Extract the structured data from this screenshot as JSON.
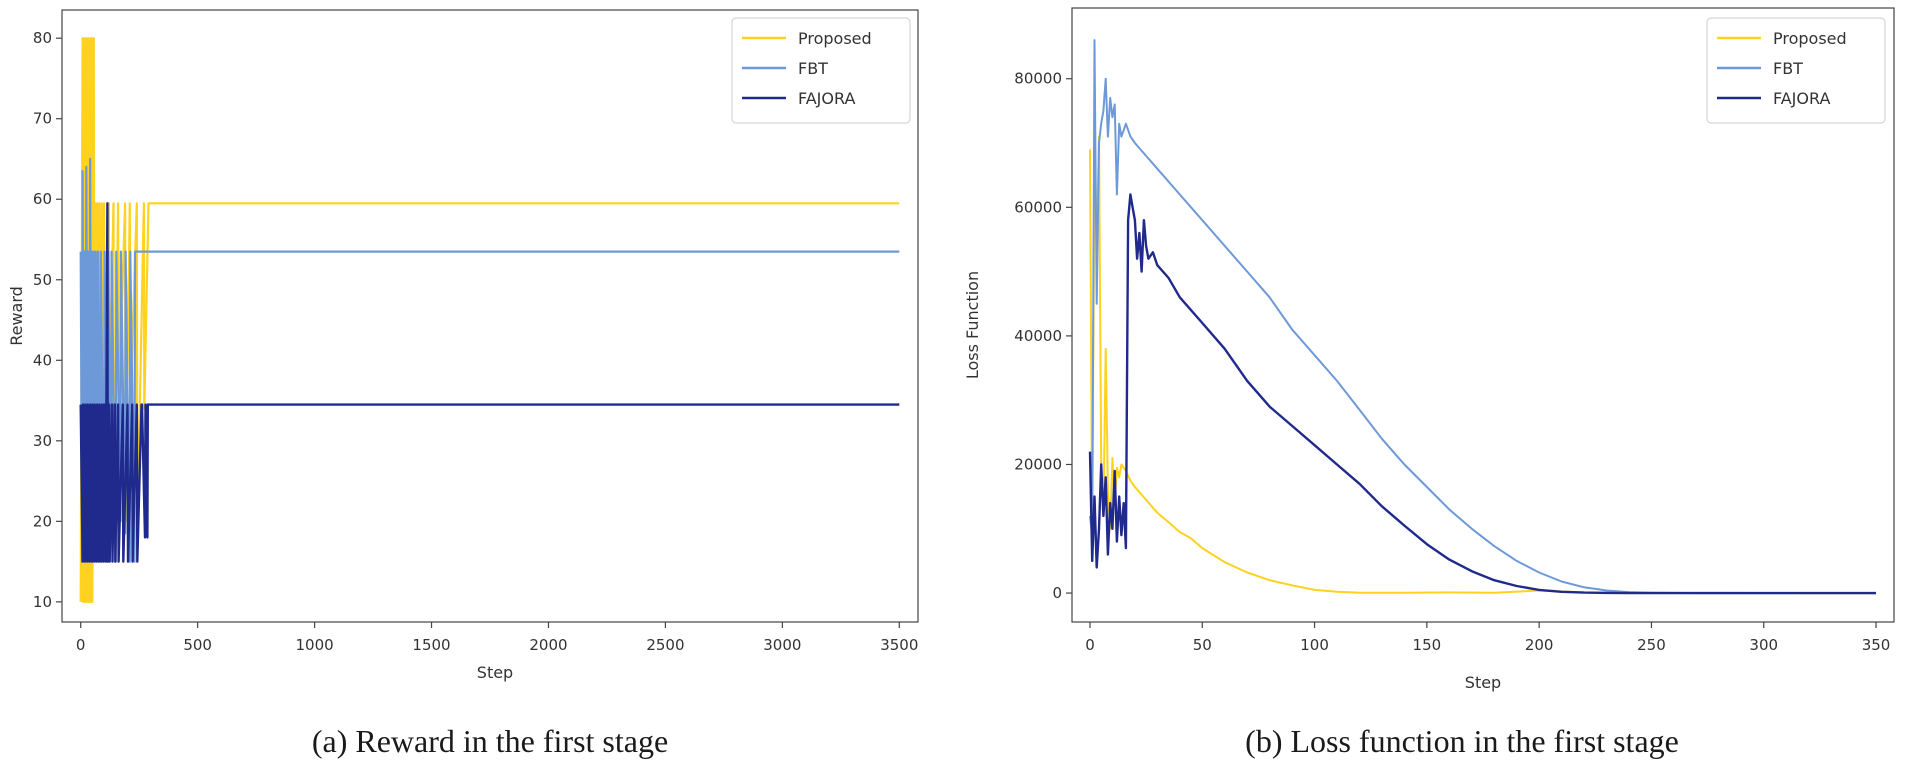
{
  "chart_data": [
    {
      "type": "line",
      "title": "",
      "caption": "(a) Reward in the first stage",
      "xlabel": "Step",
      "ylabel": "Reward",
      "xlim": [
        -80,
        3580
      ],
      "ylim": [
        7.5,
        83.5
      ],
      "xticks": [
        0,
        500,
        1000,
        1500,
        2000,
        2500,
        3000,
        3500
      ],
      "yticks": [
        10,
        20,
        30,
        40,
        50,
        60,
        70,
        80
      ],
      "legend_position": "top-right",
      "series": [
        {
          "name": "Proposed",
          "color": "#ffd21f",
          "width": 2.2,
          "x": [
            0,
            8,
            10,
            16,
            18,
            24,
            26,
            32,
            34,
            40,
            42,
            48,
            50,
            56,
            58,
            64,
            66,
            72,
            74,
            80,
            82,
            90,
            92,
            100,
            102,
            120,
            122,
            140,
            142,
            160,
            162,
            190,
            192,
            210,
            212,
            240,
            242,
            270,
            272,
            290,
            292,
            3500
          ],
          "y": [
            10,
            80,
            10,
            80,
            10,
            80,
            10,
            80,
            10,
            80,
            10,
            80,
            10,
            80,
            15,
            59.5,
            25,
            59.5,
            15,
            59.5,
            20,
            59.5,
            15,
            59.5,
            20,
            59.5,
            34,
            59.5,
            20,
            59.5,
            34,
            59.5,
            20,
            59.5,
            34,
            59.5,
            18.5,
            59.5,
            34,
            59.5,
            59.5,
            59.5
          ]
        },
        {
          "name": "FBT",
          "color": "#6e99d8",
          "width": 2.2,
          "x": [
            0,
            6,
            8,
            14,
            16,
            22,
            24,
            30,
            32,
            38,
            40,
            46,
            48,
            54,
            56,
            62,
            64,
            72,
            74,
            84,
            86,
            100,
            102,
            115,
            117,
            130,
            132,
            150,
            152,
            170,
            172,
            190,
            192,
            210,
            212,
            230,
            232,
            3500
          ],
          "y": [
            53.5,
            15,
            63.5,
            15,
            53.5,
            15,
            64,
            15,
            53.5,
            15,
            65,
            15,
            53.5,
            15,
            53.5,
            15,
            53.5,
            15,
            53.5,
            15,
            53.5,
            15,
            53.5,
            15,
            53.5,
            20,
            53.5,
            15,
            53.5,
            20,
            53.5,
            18.5,
            53.5,
            15,
            53.5,
            15,
            53.5,
            53.5
          ]
        },
        {
          "name": "FAJORA",
          "color": "#1f2a8c",
          "width": 2.4,
          "x": [
            0,
            8,
            10,
            18,
            20,
            28,
            30,
            38,
            40,
            48,
            50,
            58,
            60,
            68,
            70,
            78,
            80,
            88,
            90,
            98,
            100,
            108,
            110,
            114,
            116,
            122,
            124,
            134,
            136,
            146,
            148,
            160,
            162,
            180,
            182,
            200,
            202,
            220,
            222,
            240,
            242,
            260,
            262,
            275,
            277,
            285,
            287,
            3500
          ],
          "y": [
            34.5,
            15,
            34.5,
            15,
            34.5,
            15,
            34.5,
            15,
            34.5,
            15,
            34.5,
            15,
            34.5,
            15,
            34.5,
            15,
            34.5,
            15,
            34.5,
            15,
            34.5,
            15,
            34.5,
            59.5,
            15,
            34.5,
            15,
            34.5,
            15,
            34.5,
            15,
            34.5,
            15,
            34.5,
            15,
            34.5,
            15,
            34.5,
            15,
            34.5,
            15,
            34.5,
            34.5,
            18,
            34.5,
            18,
            34.5,
            34.5
          ]
        }
      ]
    },
    {
      "type": "line",
      "title": "",
      "caption": "(b) Loss function in the first stage",
      "xlabel": "Step",
      "ylabel": "Loss Function",
      "xlim": [
        -8,
        358
      ],
      "ylim": [
        -4500,
        91000
      ],
      "xticks": [
        0,
        50,
        100,
        150,
        200,
        250,
        300,
        350
      ],
      "yticks": [
        0,
        20000,
        40000,
        60000,
        80000
      ],
      "legend_position": "top-right",
      "series": [
        {
          "name": "Proposed",
          "color": "#ffd21f",
          "width": 2.0,
          "x": [
            0,
            1,
            2,
            3,
            4,
            5,
            6,
            7,
            8,
            9,
            10,
            11,
            12,
            13,
            14,
            16,
            18,
            20,
            25,
            30,
            35,
            40,
            45,
            50,
            60,
            70,
            80,
            90,
            100,
            110,
            120,
            140,
            160,
            180,
            200,
            220,
            240,
            260,
            280,
            300,
            320,
            350
          ],
          "y": [
            69000,
            8000,
            68000,
            55000,
            71000,
            20000,
            12000,
            38000,
            16000,
            10000,
            21000,
            14000,
            19500,
            18000,
            20000,
            19000,
            17500,
            16500,
            14500,
            12500,
            11000,
            9500,
            8500,
            7000,
            4800,
            3200,
            2000,
            1200,
            500,
            200,
            50,
            50,
            100,
            50,
            400,
            100,
            50,
            30,
            20,
            10,
            0,
            0
          ]
        },
        {
          "name": "FBT",
          "color": "#6e99d8",
          "width": 2.0,
          "x": [
            0,
            1,
            2,
            3,
            4,
            5,
            6,
            7,
            8,
            9,
            10,
            11,
            12,
            13,
            14,
            15,
            16,
            18,
            20,
            25,
            30,
            40,
            50,
            60,
            70,
            80,
            90,
            100,
            110,
            120,
            130,
            140,
            150,
            160,
            170,
            180,
            190,
            200,
            210,
            220,
            230,
            240,
            250,
            270,
            300,
            350
          ],
          "y": [
            12000,
            9000,
            86000,
            45000,
            70000,
            73000,
            75000,
            80000,
            71000,
            77000,
            74000,
            76000,
            62000,
            73000,
            71000,
            72000,
            73000,
            71000,
            70000,
            68000,
            66000,
            62000,
            58000,
            54000,
            50000,
            46000,
            41000,
            37000,
            33000,
            28500,
            24000,
            20000,
            16500,
            13000,
            10000,
            7300,
            5000,
            3200,
            1800,
            900,
            400,
            150,
            50,
            0,
            0,
            0
          ]
        },
        {
          "name": "FAJORA",
          "color": "#1f2a8c",
          "width": 2.4,
          "x": [
            0,
            1,
            2,
            3,
            4,
            5,
            6,
            7,
            8,
            9,
            10,
            11,
            12,
            13,
            14,
            15,
            16,
            17,
            18,
            19,
            20,
            21,
            22,
            23,
            24,
            25,
            26,
            28,
            30,
            35,
            40,
            50,
            60,
            70,
            80,
            90,
            100,
            110,
            120,
            130,
            140,
            150,
            160,
            170,
            180,
            190,
            200,
            210,
            220,
            230,
            240,
            250,
            270,
            300,
            350
          ],
          "y": [
            22000,
            5000,
            15000,
            4000,
            10000,
            20000,
            12000,
            18000,
            6000,
            14000,
            10000,
            19000,
            8000,
            15000,
            9000,
            14000,
            7000,
            58000,
            62000,
            60000,
            58000,
            52000,
            56000,
            50000,
            58000,
            54000,
            52000,
            53000,
            51000,
            49000,
            46000,
            42000,
            38000,
            33000,
            29000,
            26000,
            23000,
            20000,
            17000,
            13500,
            10500,
            7600,
            5200,
            3400,
            2000,
            1100,
            500,
            200,
            80,
            30,
            0,
            0,
            0,
            0,
            0
          ]
        }
      ]
    }
  ]
}
